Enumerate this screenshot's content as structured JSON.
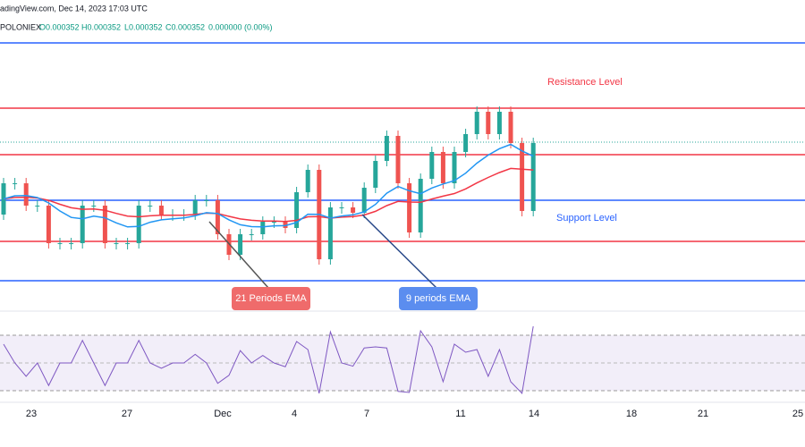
{
  "header": {
    "source": "adingView.com, Dec 14, 2023 17:03 UTC",
    "symbol": "POLONIEX",
    "open": "O0.000352",
    "high": "H0.000352",
    "low": "L0.000352",
    "close": "C0.000352",
    "change": "0.000000 (0.00%)"
  },
  "annotations": {
    "resistance": "Resistance Level",
    "support": "Support Level",
    "ema21": "21 Periods EMA",
    "ema9": "9 periods EMA"
  },
  "x_axis": {
    "labels": [
      "23",
      "27",
      "Dec",
      "4",
      "7",
      "11",
      "14",
      "18",
      "21",
      "25"
    ]
  }
}
